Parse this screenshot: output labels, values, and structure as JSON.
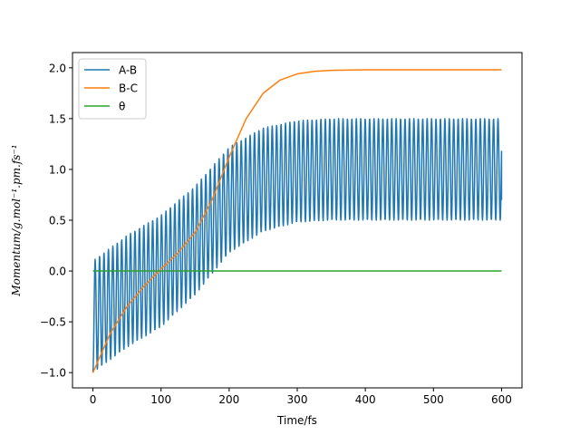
{
  "chart_data": {
    "type": "line",
    "xlabel": "Time/fs",
    "ylabel": "Momentum/g.mol⁻¹.pm.fs⁻¹",
    "xlim": [
      -30,
      630
    ],
    "ylim": [
      -1.15,
      2.15
    ],
    "x_ticks": [
      0,
      100,
      200,
      300,
      400,
      500,
      600
    ],
    "y_ticks": [
      -1.0,
      -0.5,
      0.0,
      0.5,
      1.0,
      1.5,
      2.0
    ],
    "x_tick_labels": [
      "0",
      "100",
      "200",
      "300",
      "400",
      "500",
      "600"
    ],
    "y_tick_labels": [
      "−1.0",
      "−0.5",
      "0.0",
      "0.5",
      "1.0",
      "1.5",
      "2.0"
    ],
    "legend_position": "upper-left",
    "series": [
      {
        "name": "A-B",
        "color": "#1f77b4",
        "description": "oscillating",
        "x_range": [
          0,
          600
        ],
        "period": 6.5,
        "center_points": [
          [
            0,
            -0.45
          ],
          [
            50,
            -0.2
          ],
          [
            100,
            0.0
          ],
          [
            150,
            0.3
          ],
          [
            200,
            0.7
          ],
          [
            250,
            0.9
          ],
          [
            300,
            0.98
          ],
          [
            350,
            1.0
          ],
          [
            600,
            1.0
          ]
        ],
        "amplitude_points": [
          [
            0,
            0.55
          ],
          [
            100,
            0.55
          ],
          [
            200,
            0.52
          ],
          [
            300,
            0.5
          ],
          [
            600,
            0.5
          ]
        ],
        "end_value": 0.7
      },
      {
        "name": "B-C",
        "color": "#ff7f0e",
        "x": [
          0,
          25,
          50,
          75,
          100,
          125,
          150,
          175,
          200,
          225,
          250,
          275,
          300,
          325,
          350,
          400,
          450,
          500,
          550,
          600
        ],
        "y": [
          -1.0,
          -0.62,
          -0.35,
          -0.15,
          0.02,
          0.18,
          0.38,
          0.7,
          1.12,
          1.5,
          1.75,
          1.88,
          1.94,
          1.965,
          1.975,
          1.98,
          1.98,
          1.98,
          1.98,
          1.98
        ]
      },
      {
        "name": "θ",
        "color": "#2ca02c",
        "x": [
          0,
          600
        ],
        "y": [
          0.0,
          0.0
        ]
      }
    ]
  }
}
